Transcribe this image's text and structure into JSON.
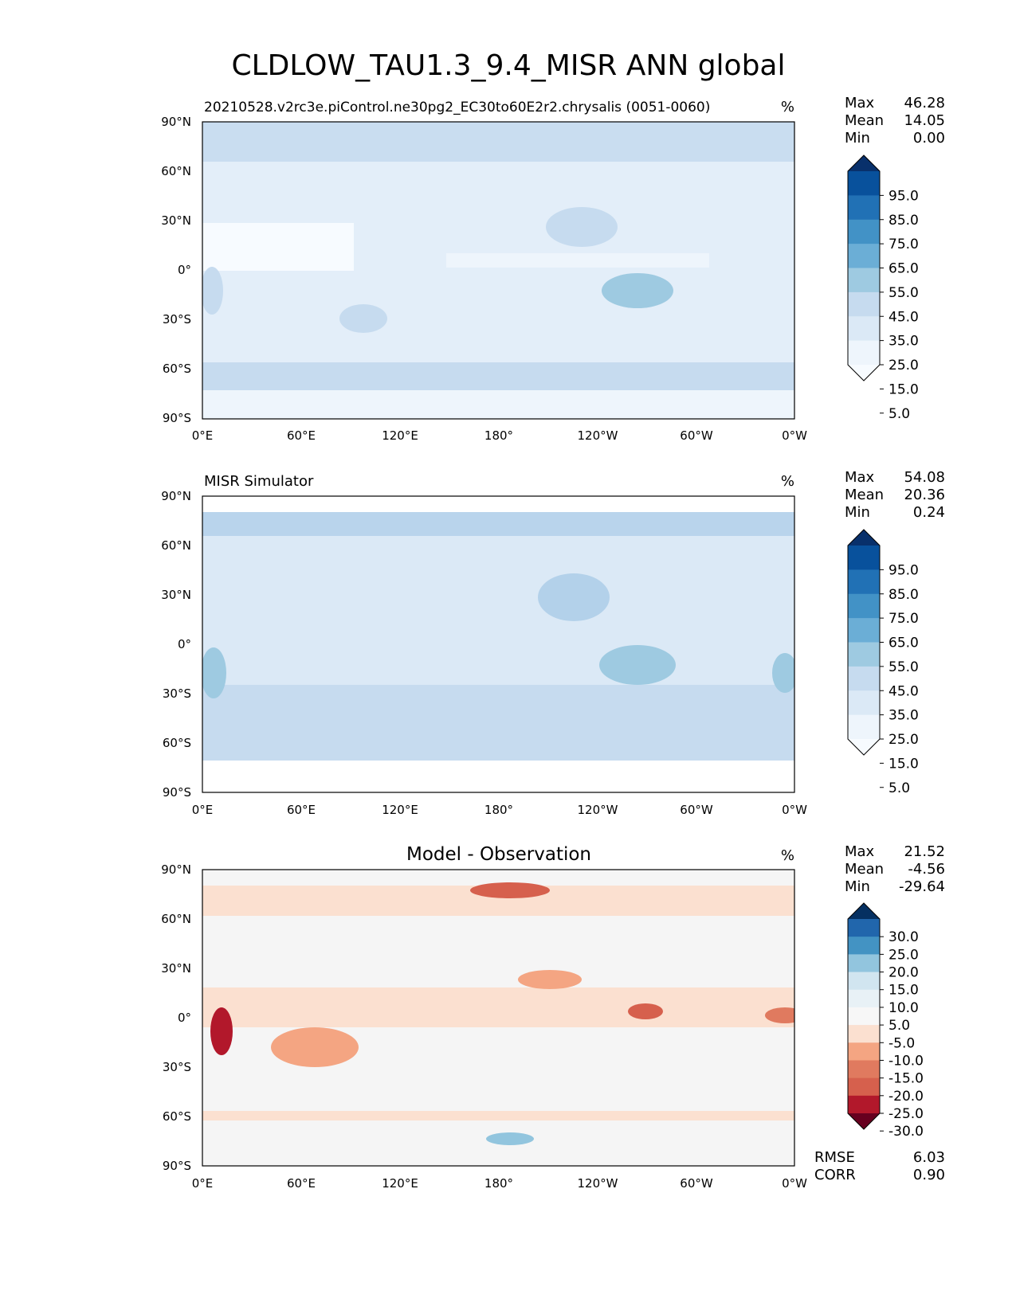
{
  "title": "CLDLOW_TAU1.3_9.4_MISR ANN global",
  "lat_ticks": [
    "90°N",
    "60°N",
    "30°N",
    "0°",
    "30°S",
    "60°S",
    "90°S"
  ],
  "lon_ticks": [
    "0°E",
    "60°E",
    "120°E",
    "180°",
    "120°W",
    "60°W",
    "0°W"
  ],
  "panels": [
    {
      "subtitle_left": "20210528.v2rc3e.piControl.ne30pg2_EC30to60E2r2.chrysalis (0051-0060)",
      "subtitle_center": "",
      "units": "%",
      "stats": {
        "max_label": "Max",
        "max": "46.28",
        "mean_label": "Mean",
        "mean": "14.05",
        "min_label": "Min",
        "min": "0.00"
      },
      "colorbar": [
        "95.0",
        "85.0",
        "75.0",
        "65.0",
        "55.0",
        "45.0",
        "35.0",
        "25.0",
        "15.0",
        "5.0"
      ],
      "colors": [
        "#08306b",
        "#08519c",
        "#2171b5",
        "#4292c6",
        "#6baed6",
        "#9ecae1",
        "#c6dbef",
        "#dbe9f6",
        "#eef5fc",
        "#f7fbff"
      ]
    },
    {
      "subtitle_left": "MISR Simulator",
      "subtitle_center": "",
      "units": "%",
      "stats": {
        "max_label": "Max",
        "max": "54.08",
        "mean_label": "Mean",
        "mean": "20.36",
        "min_label": "Min",
        "min": "0.24"
      },
      "colorbar": [
        "95.0",
        "85.0",
        "75.0",
        "65.0",
        "55.0",
        "45.0",
        "35.0",
        "25.0",
        "15.0",
        "5.0"
      ],
      "colors": [
        "#08306b",
        "#08519c",
        "#2171b5",
        "#4292c6",
        "#6baed6",
        "#9ecae1",
        "#c6dbef",
        "#dbe9f6",
        "#eef5fc",
        "#f7fbff"
      ]
    },
    {
      "subtitle_left": "",
      "subtitle_center": "Model - Observation",
      "units": "%",
      "stats": {
        "max_label": "Max",
        "max": "21.52",
        "mean_label": "Mean",
        "mean": "-4.56",
        "min_label": "Min",
        "min": "-29.64"
      },
      "colorbar": [
        "30.0",
        "25.0",
        "20.0",
        "15.0",
        "10.0",
        "5.0",
        "-5.0",
        "-10.0",
        "-15.0",
        "-20.0",
        "-25.0",
        "-30.0"
      ],
      "colors": [
        "#053061",
        "#2166ac",
        "#4393c3",
        "#92c5de",
        "#d1e5f0",
        "#e8f1f6",
        "#f7f7f7",
        "#fbe0d0",
        "#f4a582",
        "#e07a5f",
        "#d6604d",
        "#b2182b",
        "#67001f"
      ],
      "metrics": {
        "rmse_label": "RMSE",
        "rmse": "6.03",
        "corr_label": "CORR",
        "corr": "0.90"
      }
    }
  ]
}
